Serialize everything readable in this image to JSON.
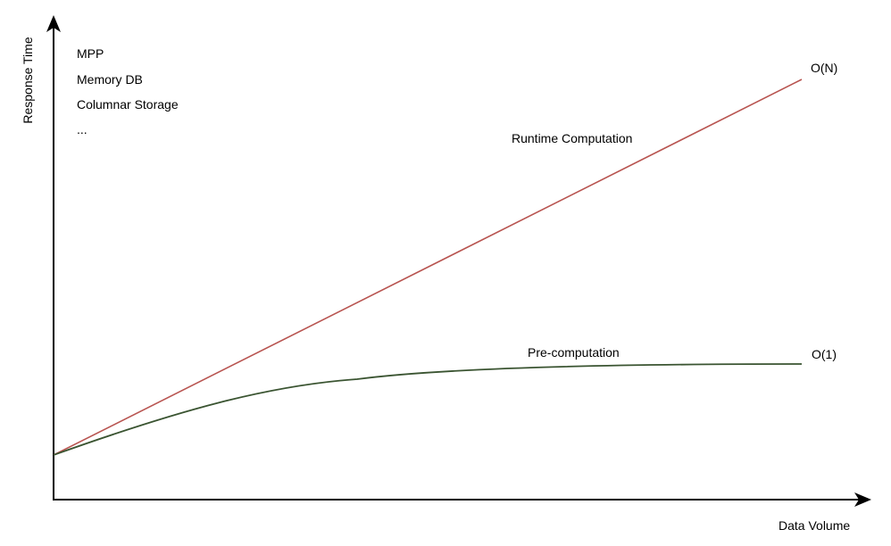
{
  "axes": {
    "x_label": "Data Volume",
    "y_label": "Response Time"
  },
  "technologies": [
    "MPP",
    "Memory DB",
    "Columnar Storage",
    "..."
  ],
  "curves": {
    "runtime": {
      "label": "Runtime Computation",
      "complexity": "O(N)",
      "color": "#b85450"
    },
    "precompute": {
      "label": "Pre-computation",
      "complexity": "O(1)",
      "color": "#3a5431"
    }
  },
  "colors": {
    "axis": "#000000"
  }
}
